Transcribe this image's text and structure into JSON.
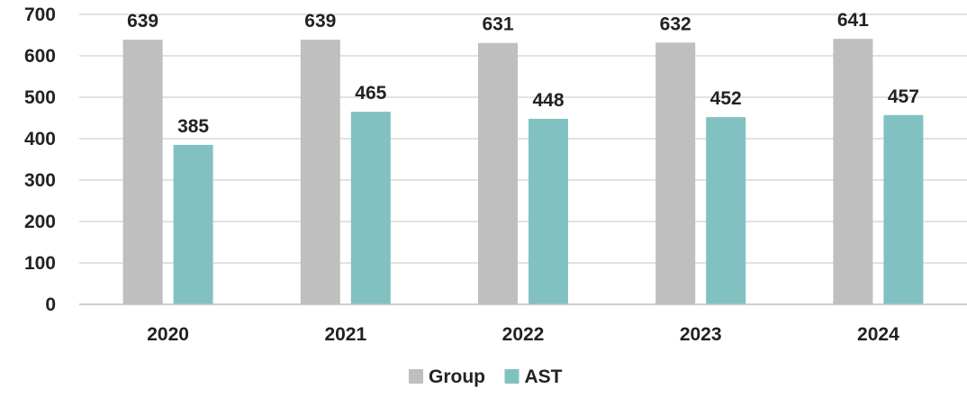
{
  "chart_data": {
    "type": "bar",
    "title": "",
    "xlabel": "",
    "ylabel": "",
    "categories": [
      "2020",
      "2021",
      "2022",
      "2023",
      "2024"
    ],
    "series": [
      {
        "name": "Group",
        "values": [
          639,
          639,
          631,
          632,
          641
        ],
        "color": "#bfbfbf"
      },
      {
        "name": "AST",
        "values": [
          385,
          465,
          448,
          452,
          457
        ],
        "color": "#82c1c2"
      }
    ],
    "ylim": [
      0,
      700
    ],
    "yticks": [
      0,
      100,
      200,
      300,
      400,
      500,
      600,
      700
    ],
    "grid": true,
    "legend": "bottom-center"
  }
}
